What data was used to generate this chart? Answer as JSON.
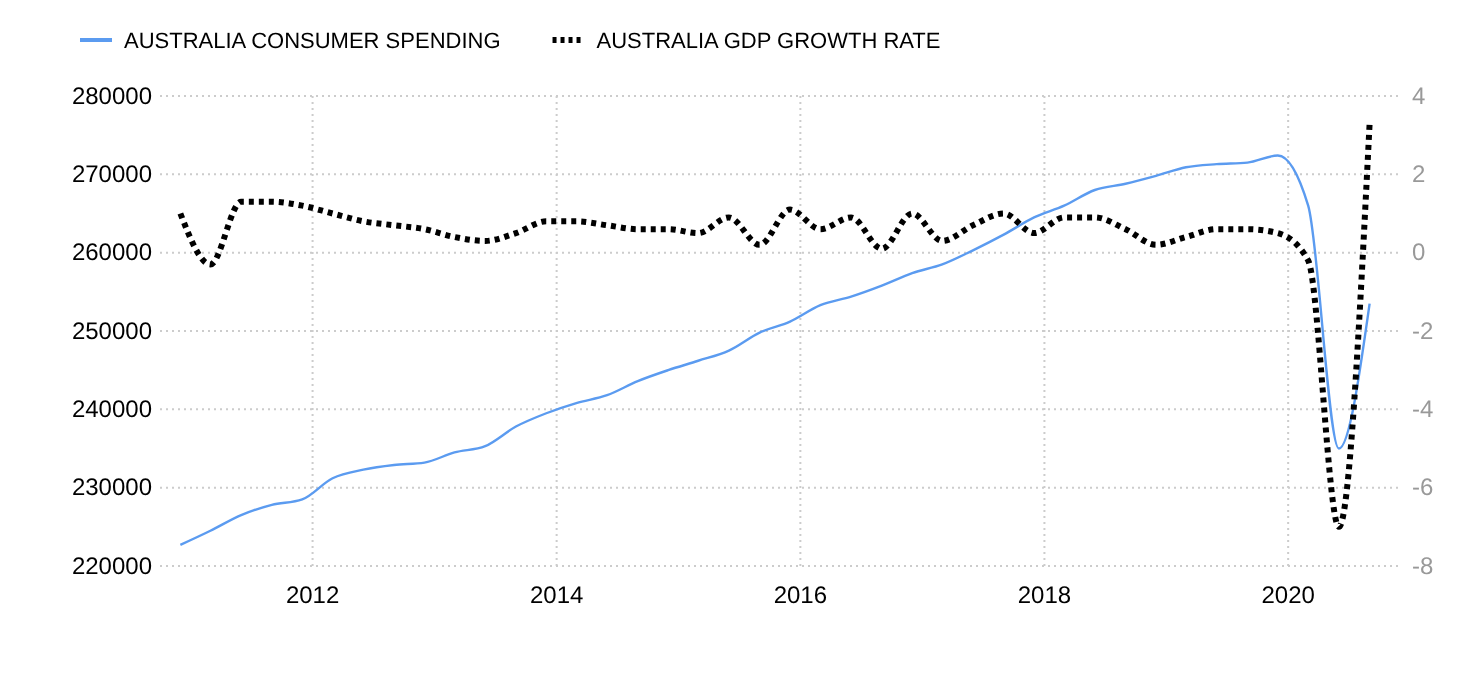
{
  "chart_data": {
    "type": "line",
    "x": [
      "2010-12",
      "2011-03",
      "2011-06",
      "2011-09",
      "2011-12",
      "2012-03",
      "2012-06",
      "2012-09",
      "2012-12",
      "2013-03",
      "2013-06",
      "2013-09",
      "2013-12",
      "2014-03",
      "2014-06",
      "2014-09",
      "2014-12",
      "2015-03",
      "2015-06",
      "2015-09",
      "2015-12",
      "2016-03",
      "2016-06",
      "2016-09",
      "2016-12",
      "2017-03",
      "2017-06",
      "2017-09",
      "2017-12",
      "2018-03",
      "2018-06",
      "2018-09",
      "2018-12",
      "2019-03",
      "2019-06",
      "2019-09",
      "2019-12",
      "2020-03",
      "2020-06",
      "2020-09"
    ],
    "series": [
      {
        "name": "AUSTRALIA CONSUMER SPENDING",
        "color": "#5b9bf0",
        "line_style": "solid",
        "values": [
          222700,
          224500,
          226500,
          227800,
          228500,
          231200,
          232300,
          232900,
          233200,
          234500,
          235300,
          237800,
          239500,
          240800,
          241800,
          243600,
          245000,
          246200,
          247500,
          249800,
          251200,
          253300,
          254400,
          255800,
          257400,
          258500,
          260300,
          262300,
          264500,
          266000,
          268000,
          268800,
          269800,
          270900,
          271300,
          271500,
          272400,
          266000,
          235000,
          253500
        ]
      },
      {
        "name": "AUSTRALIA GDP GROWTH RATE",
        "color": "#000000",
        "line_style": "dotted",
        "axis": "y2",
        "values": [
          1.0,
          -0.3,
          1.3,
          1.3,
          1.2,
          1.0,
          0.8,
          0.7,
          0.6,
          0.4,
          0.3,
          0.5,
          0.8,
          0.8,
          0.7,
          0.6,
          0.6,
          0.5,
          0.9,
          0.2,
          1.1,
          0.6,
          0.9,
          0.1,
          1.0,
          0.3,
          0.7,
          1.0,
          0.5,
          0.9,
          0.9,
          0.6,
          0.2,
          0.4,
          0.6,
          0.6,
          0.5,
          -0.2,
          -7.0,
          3.3
        ]
      }
    ],
    "xlim": [
      "2010-10",
      "2020-12"
    ],
    "xticks": [
      "2012",
      "2014",
      "2016",
      "2018",
      "2020"
    ],
    "ylim": [
      220000,
      280000
    ],
    "yticks": [
      220000,
      230000,
      240000,
      250000,
      260000,
      270000,
      280000
    ],
    "y2lim": [
      -8,
      4
    ],
    "y2ticks": [
      -8,
      -6,
      -4,
      -2,
      0,
      2,
      4
    ],
    "grid": true,
    "legend": "top left"
  }
}
